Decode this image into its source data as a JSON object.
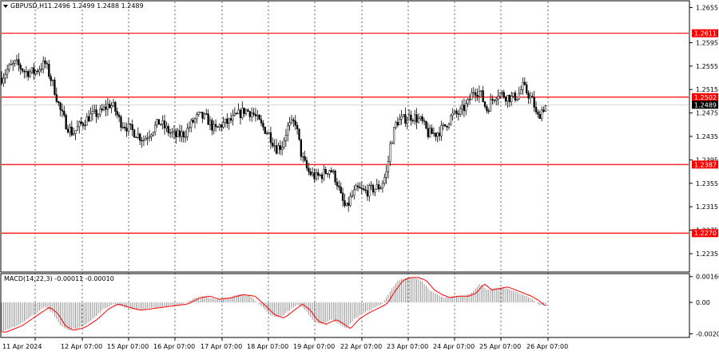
{
  "chart_data": {
    "type": "candlestick",
    "header": {
      "symbol": "GBPUSD,H1",
      "ohlc": "1.2496 1.2499 1.2488 1.2489"
    },
    "price_axis": {
      "ylim": [
        1.2205,
        1.2665
      ],
      "ticks": [
        "1.2655",
        "1.2595",
        "1.2555",
        "1.2515",
        "1.2475",
        "1.2435",
        "1.2395",
        "1.2355",
        "1.2315",
        "1.2275",
        "1.2235"
      ],
      "current_price": "1.2489"
    },
    "levels": [
      {
        "value": 1.2611,
        "label": "1.2611"
      },
      {
        "value": 1.2502,
        "label": "1.2502"
      },
      {
        "value": 1.2387,
        "label": "1.2387"
      },
      {
        "value": 1.227,
        "label": "1.2270"
      }
    ],
    "x_labels": [
      "11 Apr 2024",
      "12 Apr 07:00",
      "15 Apr 07:00",
      "16 Apr 07:00",
      "17 Apr 07:00",
      "18 Apr 07:00",
      "19 Apr 07:00",
      "22 Apr 07:00",
      "23 Apr 07:00",
      "24 Apr 07:00",
      "25 Apr 07:00",
      "26 Apr 07:00"
    ],
    "close_path": [
      [
        0,
        1.2535
      ],
      [
        8,
        1.255
      ],
      [
        18,
        1.256
      ],
      [
        30,
        1.2545
      ],
      [
        42,
        1.2545
      ],
      [
        55,
        1.256
      ],
      [
        66,
        1.252
      ],
      [
        74,
        1.248
      ],
      [
        82,
        1.2455
      ],
      [
        90,
        1.244
      ],
      [
        100,
        1.2455
      ],
      [
        112,
        1.247
      ],
      [
        125,
        1.2475
      ],
      [
        136,
        1.249
      ],
      [
        142,
        1.2485
      ],
      [
        150,
        1.246
      ],
      [
        160,
        1.245
      ],
      [
        170,
        1.244
      ],
      [
        180,
        1.243
      ],
      [
        190,
        1.2445
      ],
      [
        200,
        1.246
      ],
      [
        210,
        1.2445
      ],
      [
        220,
        1.2435
      ],
      [
        232,
        1.244
      ],
      [
        242,
        1.246
      ],
      [
        250,
        1.247
      ],
      [
        260,
        1.2465
      ],
      [
        270,
        1.2445
      ],
      [
        278,
        1.2455
      ],
      [
        288,
        1.246
      ],
      [
        298,
        1.247
      ],
      [
        308,
        1.248
      ],
      [
        318,
        1.2475
      ],
      [
        328,
        1.2455
      ],
      [
        338,
        1.244
      ],
      [
        348,
        1.2415
      ],
      [
        355,
        1.242
      ],
      [
        362,
        1.245
      ],
      [
        372,
        1.246
      ],
      [
        380,
        1.24
      ],
      [
        388,
        1.2375
      ],
      [
        398,
        1.2365
      ],
      [
        406,
        1.237
      ],
      [
        416,
        1.238
      ],
      [
        424,
        1.236
      ],
      [
        430,
        1.233
      ],
      [
        436,
        1.231
      ],
      [
        442,
        1.233
      ],
      [
        450,
        1.2345
      ],
      [
        460,
        1.234
      ],
      [
        470,
        1.2345
      ],
      [
        480,
        1.235
      ],
      [
        488,
        1.2375
      ],
      [
        492,
        1.242
      ],
      [
        500,
        1.246
      ],
      [
        510,
        1.2465
      ],
      [
        520,
        1.247
      ],
      [
        532,
        1.246
      ],
      [
        540,
        1.244
      ],
      [
        550,
        1.244
      ],
      [
        560,
        1.245
      ],
      [
        570,
        1.247
      ],
      [
        580,
        1.2475
      ],
      [
        590,
        1.249
      ],
      [
        598,
        1.2515
      ],
      [
        606,
        1.251
      ],
      [
        614,
        1.248
      ],
      [
        620,
        1.2495
      ],
      [
        628,
        1.251
      ],
      [
        636,
        1.2505
      ],
      [
        646,
        1.25
      ],
      [
        654,
        1.2505
      ],
      [
        660,
        1.252
      ],
      [
        668,
        1.2505
      ],
      [
        674,
        1.249
      ],
      [
        678,
        1.2465
      ],
      [
        684,
        1.248
      ],
      [
        690,
        1.2489
      ]
    ],
    "macd": {
      "label": "MACD(14,22,3) -0.00011 -0.00010",
      "ylim": [
        -0.0022,
        0.0018
      ],
      "ticks": [
        "0.00166",
        "0.00",
        "-0.00202"
      ],
      "histogram": [
        [
          0,
          -0.0019
        ],
        [
          20,
          -0.0015
        ],
        [
          40,
          -0.0008
        ],
        [
          55,
          -0.0003
        ],
        [
          65,
          -0.0007
        ],
        [
          75,
          -0.0015
        ],
        [
          85,
          -0.0018
        ],
        [
          100,
          -0.0016
        ],
        [
          115,
          -0.0011
        ],
        [
          130,
          -0.0004
        ],
        [
          142,
          -0.0001
        ],
        [
          155,
          -0.0003
        ],
        [
          170,
          -0.0005
        ],
        [
          185,
          -0.0004
        ],
        [
          200,
          -0.0003
        ],
        [
          215,
          -0.0002
        ],
        [
          230,
          -0.0001
        ],
        [
          245,
          0.0003
        ],
        [
          258,
          0.0004
        ],
        [
          270,
          0.0002
        ],
        [
          285,
          0.0003
        ],
        [
          300,
          0.0005
        ],
        [
          315,
          0.0004
        ],
        [
          328,
          -0.0002
        ],
        [
          340,
          -0.0008
        ],
        [
          352,
          -0.001
        ],
        [
          362,
          -0.0006
        ],
        [
          375,
          -0.0001
        ],
        [
          385,
          -0.0005
        ],
        [
          395,
          -0.0012
        ],
        [
          405,
          -0.0014
        ],
        [
          418,
          -0.0011
        ],
        [
          428,
          -0.0014
        ],
        [
          436,
          -0.0017
        ],
        [
          446,
          -0.0011
        ],
        [
          458,
          -0.0007
        ],
        [
          470,
          -0.0004
        ],
        [
          482,
          -0.0001
        ],
        [
          492,
          0.0007
        ],
        [
          502,
          0.0014
        ],
        [
          512,
          0.0016
        ],
        [
          522,
          0.0016
        ],
        [
          532,
          0.0014
        ],
        [
          542,
          0.0008
        ],
        [
          552,
          0.0005
        ],
        [
          562,
          0.0003
        ],
        [
          572,
          0.0004
        ],
        [
          585,
          0.0004
        ],
        [
          595,
          0.0006
        ],
        [
          605,
          0.0012
        ],
        [
          615,
          0.0008
        ],
        [
          625,
          0.0009
        ],
        [
          635,
          0.001
        ],
        [
          645,
          0.0008
        ],
        [
          655,
          0.0006
        ],
        [
          665,
          0.0004
        ],
        [
          675,
          0.0001
        ],
        [
          682,
          -0.0002
        ],
        [
          690,
          -0.0001
        ]
      ]
    }
  },
  "colors": {
    "level_line": "#ff0000",
    "signal_line": "#ff0000",
    "histogram": "#8c8c8c",
    "grid": "#000000",
    "candle": "#000000",
    "price_box": "#000000",
    "level_box": "#ff0000"
  }
}
